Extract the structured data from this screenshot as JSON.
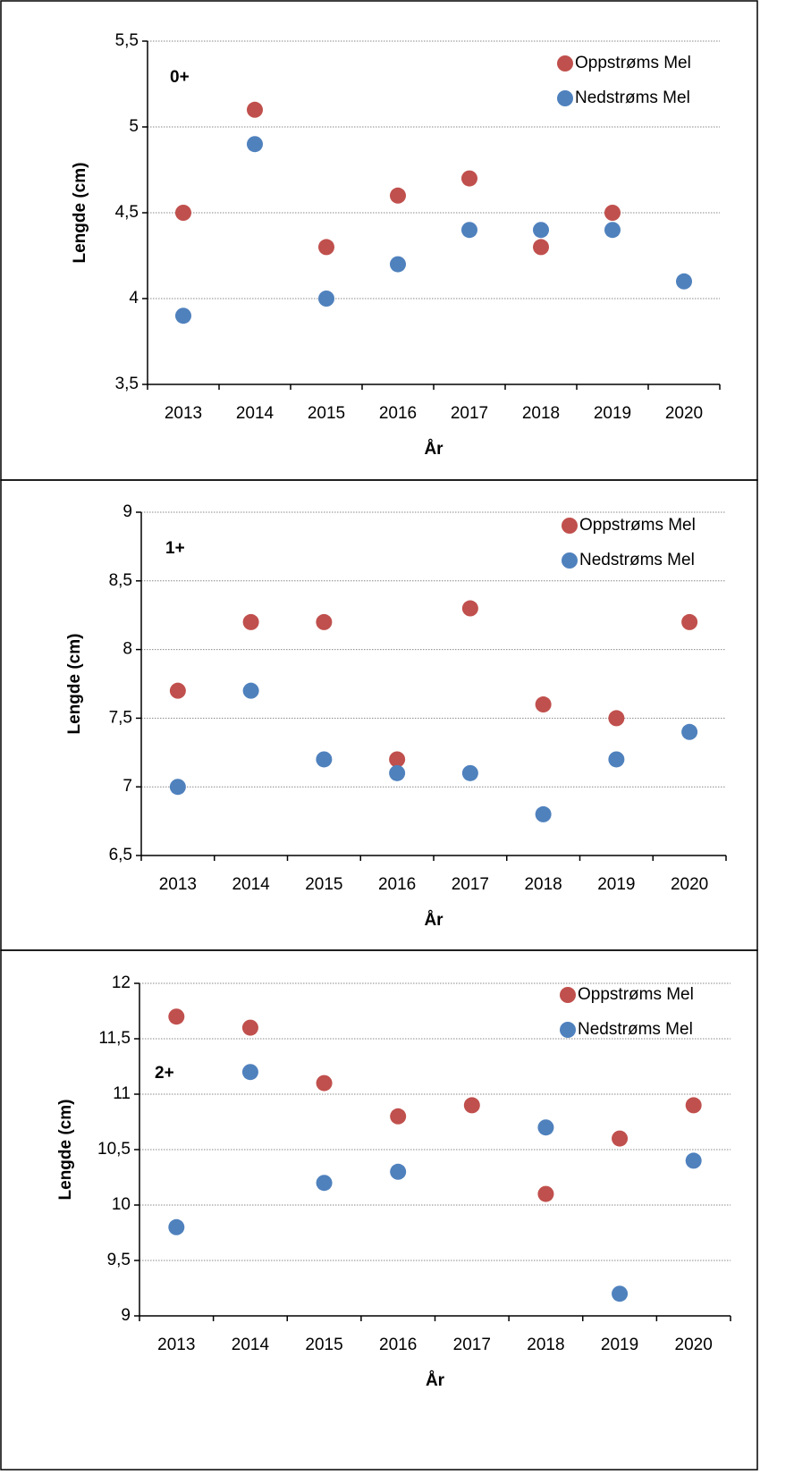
{
  "chart_data": [
    {
      "type": "scatter",
      "annotation": "0+",
      "ylabel": "Lengde (cm)",
      "xlabel": "År",
      "categories": [
        "2013",
        "2014",
        "2015",
        "2016",
        "2017",
        "2018",
        "2019",
        "2020"
      ],
      "series": [
        {
          "name": "Oppstrøms Mel",
          "color": "#c0504d",
          "values": [
            4.5,
            5.1,
            4.3,
            4.6,
            4.7,
            4.3,
            4.5,
            null
          ]
        },
        {
          "name": "Nedstrøms Mel",
          "color": "#4f81bd",
          "values": [
            3.9,
            4.9,
            4.0,
            4.2,
            4.4,
            4.4,
            4.4,
            4.1
          ]
        }
      ],
      "ylim": [
        3.5,
        5.5
      ],
      "yticks": [
        {
          "value": 3.5,
          "label": "3,5"
        },
        4,
        {
          "value": 4.5,
          "label": "4,5"
        },
        5,
        {
          "value": 5.5,
          "label": "5,5"
        }
      ],
      "grid": true,
      "legend": "top-right"
    },
    {
      "type": "scatter",
      "annotation": "1+",
      "ylabel": "Lengde (cm)",
      "xlabel": "År",
      "categories": [
        "2013",
        "2014",
        "2015",
        "2016",
        "2017",
        "2018",
        "2019",
        "2020"
      ],
      "series": [
        {
          "name": "Oppstrøms Mel",
          "color": "#c0504d",
          "values": [
            7.7,
            8.2,
            8.2,
            7.2,
            8.3,
            7.6,
            7.5,
            8.2
          ]
        },
        {
          "name": "Nedstrøms Mel",
          "color": "#4f81bd",
          "values": [
            7.0,
            7.7,
            7.2,
            7.1,
            7.1,
            6.8,
            7.2,
            7.4
          ]
        }
      ],
      "ylim": [
        6.5,
        9
      ],
      "yticks": [
        {
          "value": 6.5,
          "label": "6,5"
        },
        7,
        {
          "value": 7.5,
          "label": "7,5"
        },
        8,
        {
          "value": 8.5,
          "label": "8,5"
        },
        9
      ],
      "grid": true,
      "legend": "top-right"
    },
    {
      "type": "scatter",
      "annotation": "2+",
      "ylabel": "Lengde (cm)",
      "xlabel": "År",
      "categories": [
        "2013",
        "2014",
        "2015",
        "2016",
        "2017",
        "2018",
        "2019",
        "2020"
      ],
      "series": [
        {
          "name": "Oppstrøms Mel",
          "color": "#c0504d",
          "values": [
            11.7,
            11.6,
            11.1,
            10.8,
            10.9,
            10.1,
            10.6,
            10.9
          ]
        },
        {
          "name": "Nedstrøms Mel",
          "color": "#4f81bd",
          "values": [
            9.8,
            11.2,
            10.2,
            10.3,
            null,
            10.7,
            9.2,
            10.4
          ]
        }
      ],
      "ylim": [
        9,
        12
      ],
      "yticks": [
        9,
        {
          "value": 9.5,
          "label": "9,5"
        },
        10,
        {
          "value": 10.5,
          "label": "10,5"
        },
        11,
        {
          "value": 11.5,
          "label": "11,5"
        },
        12
      ],
      "grid": true,
      "legend": "top-right"
    }
  ]
}
